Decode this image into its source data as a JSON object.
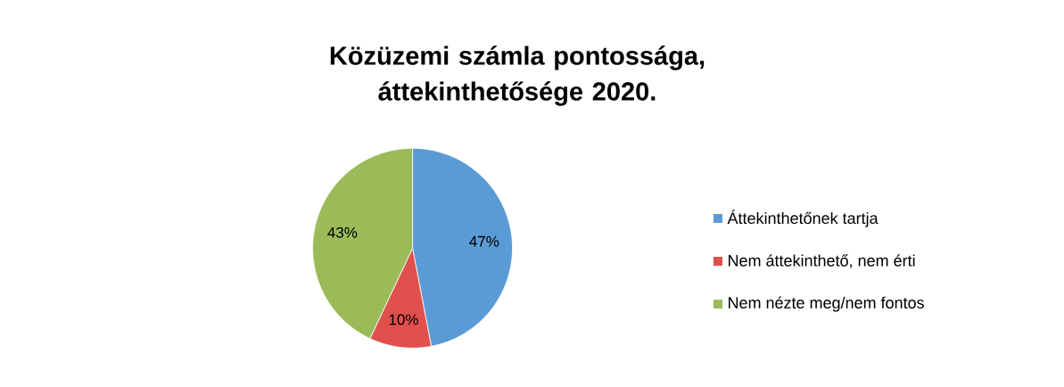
{
  "chart_data": {
    "type": "pie",
    "title": "Közüzemi számla pontossága, áttekinthetősége 2020.",
    "categories": [
      "Áttekinthetőnek tartja",
      "Nem áttekinthető, nem érti",
      "Nem nézte meg/nem fontos"
    ],
    "values": [
      47,
      10,
      43
    ],
    "colors": [
      "#5b9bd5",
      "#e0504d",
      "#9bbb59"
    ],
    "value_labels": [
      "47%",
      "10%",
      "43%"
    ],
    "legend": "right"
  }
}
